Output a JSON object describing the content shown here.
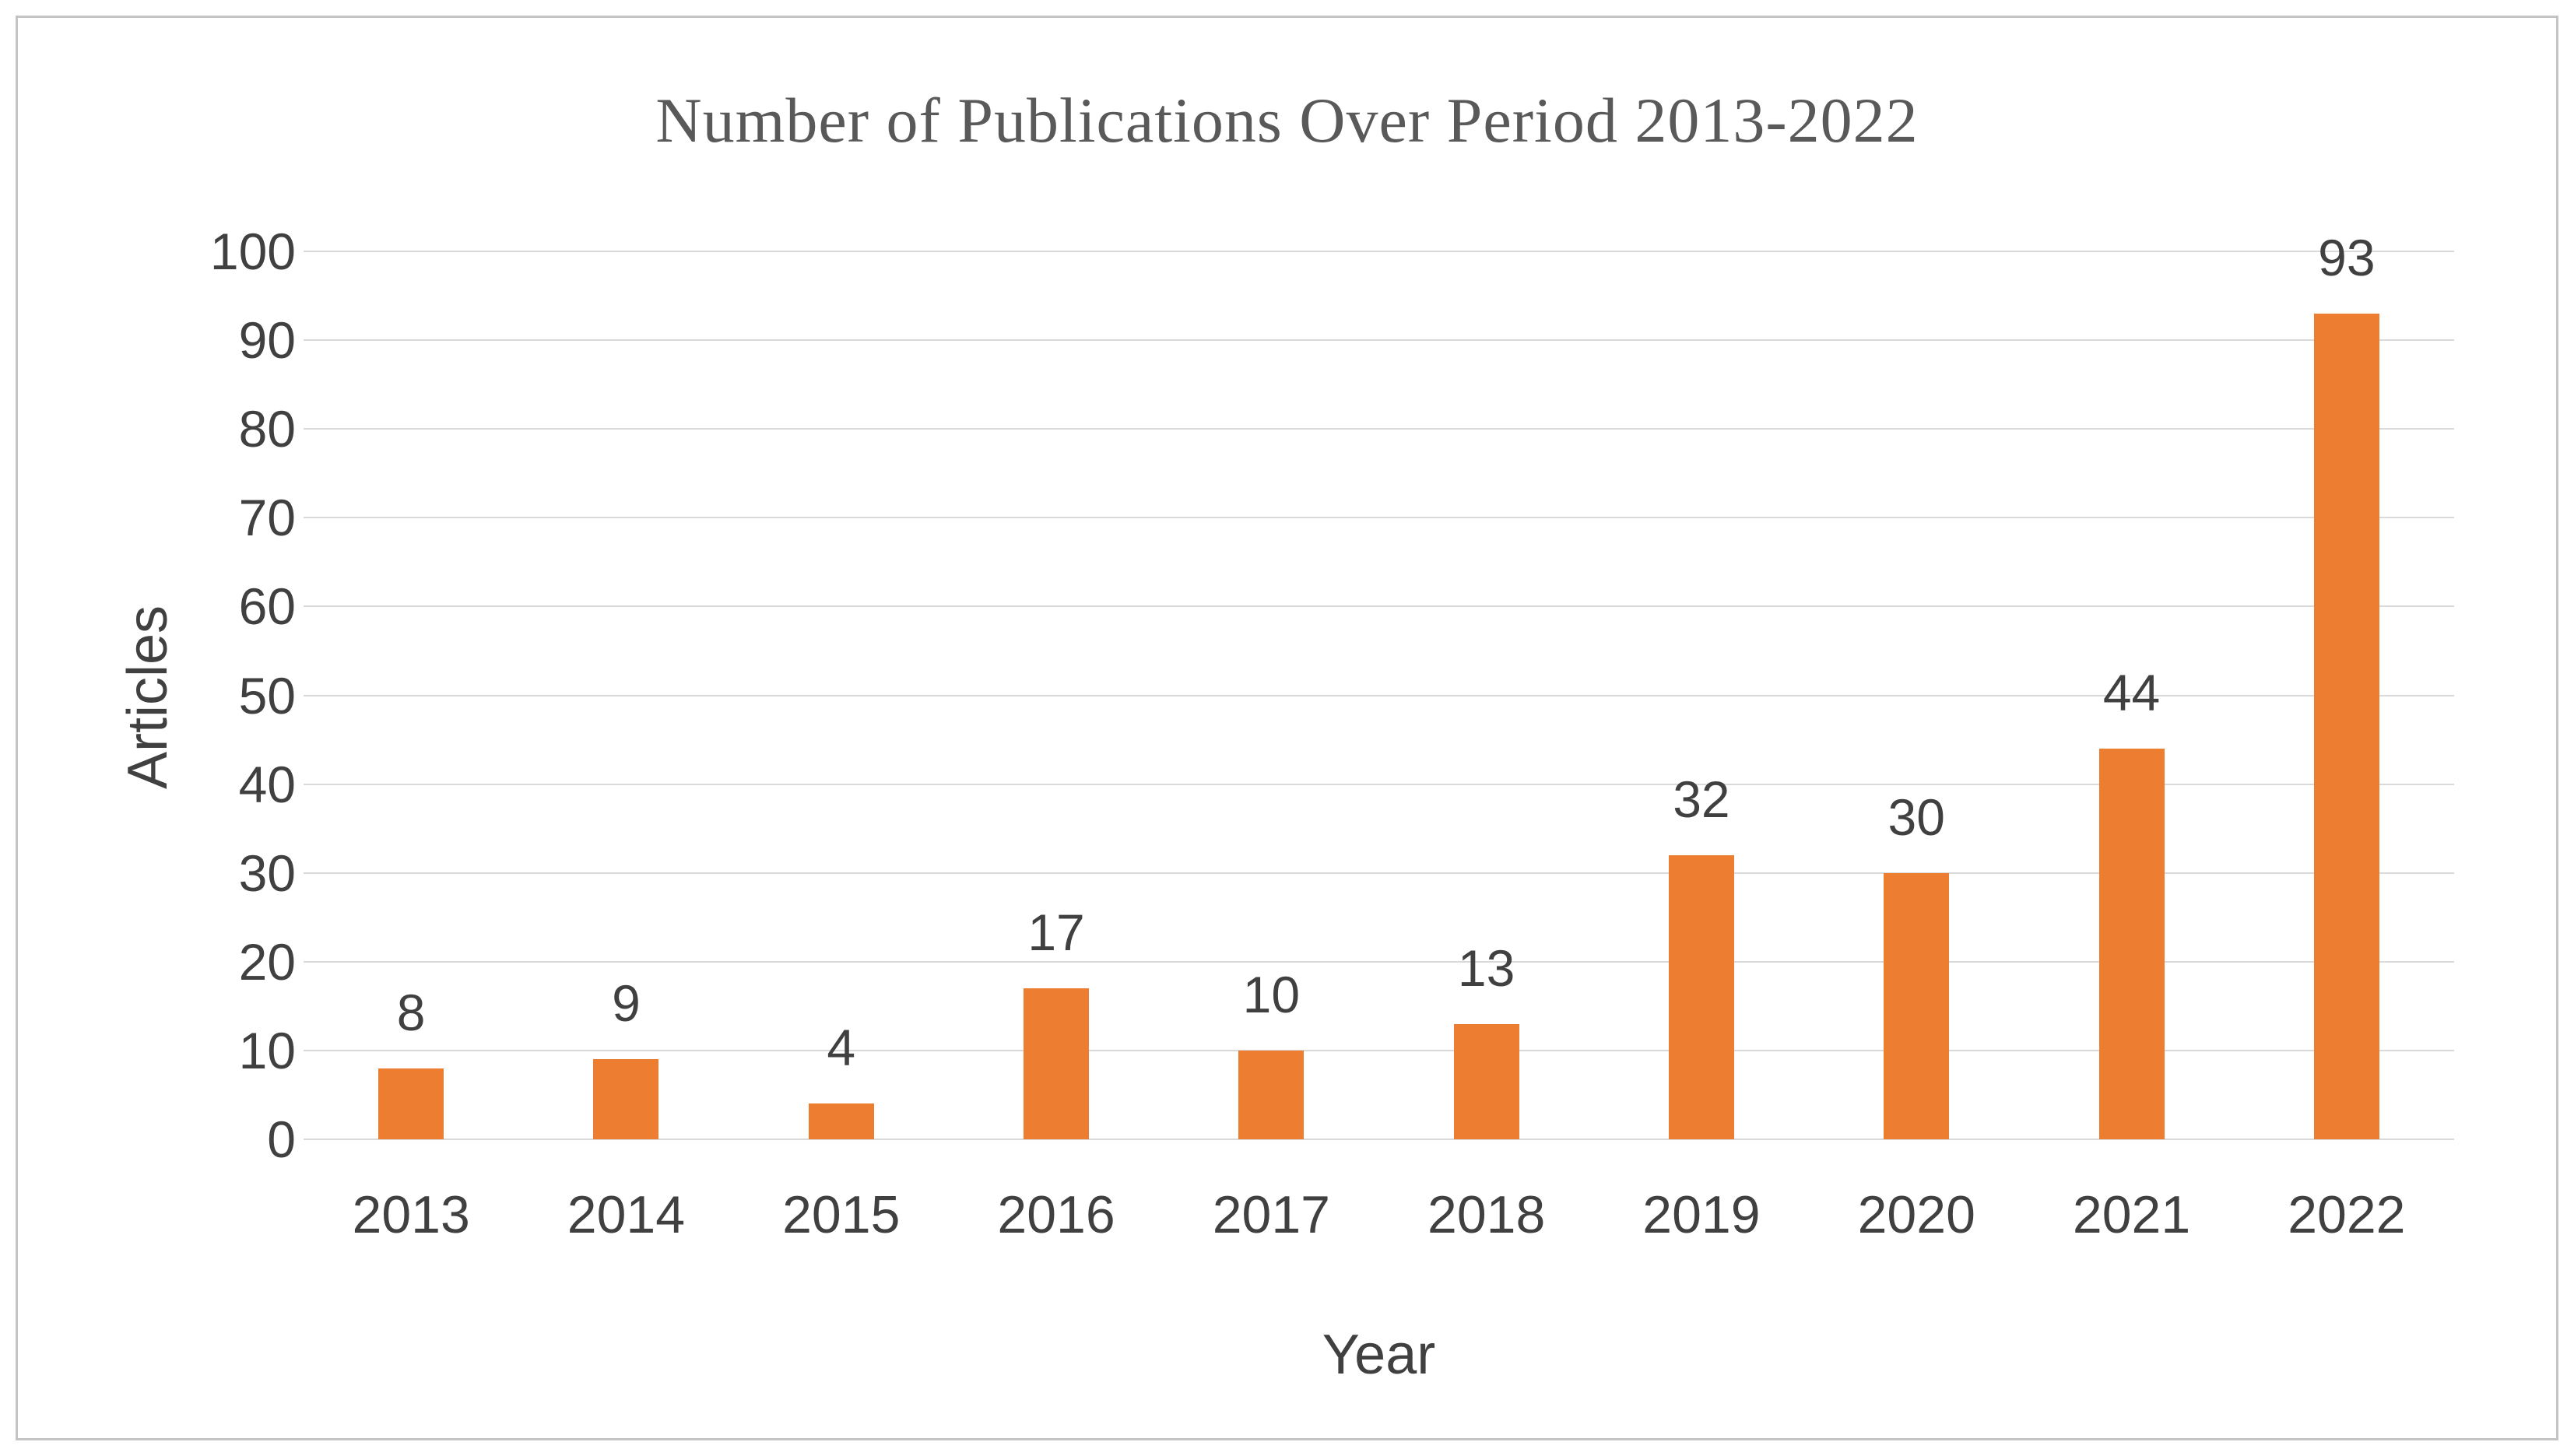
{
  "frame": {
    "background": "#ffffff",
    "border_color": "#c4c4c4"
  },
  "chart_data": {
    "type": "bar",
    "title": "Number of Publications Over Period 2013-2022",
    "categories": [
      "2013",
      "2014",
      "2015",
      "2016",
      "2017",
      "2018",
      "2019",
      "2020",
      "2021",
      "2022"
    ],
    "values": [
      8,
      9,
      4,
      17,
      10,
      13,
      32,
      30,
      44,
      93
    ],
    "xlabel": "Year",
    "ylabel": "Articles",
    "ylim": [
      0,
      100
    ],
    "ytick_step": 10,
    "yticks": [
      0,
      10,
      20,
      30,
      40,
      50,
      60,
      70,
      80,
      90,
      100
    ],
    "data_labels_shown": true,
    "legend": "none",
    "grid": "horizontal",
    "bar_color": "#ED7D31",
    "grid_color": "#D9D9D9",
    "title_color": "#595959",
    "axis_text_color": "#404040"
  }
}
